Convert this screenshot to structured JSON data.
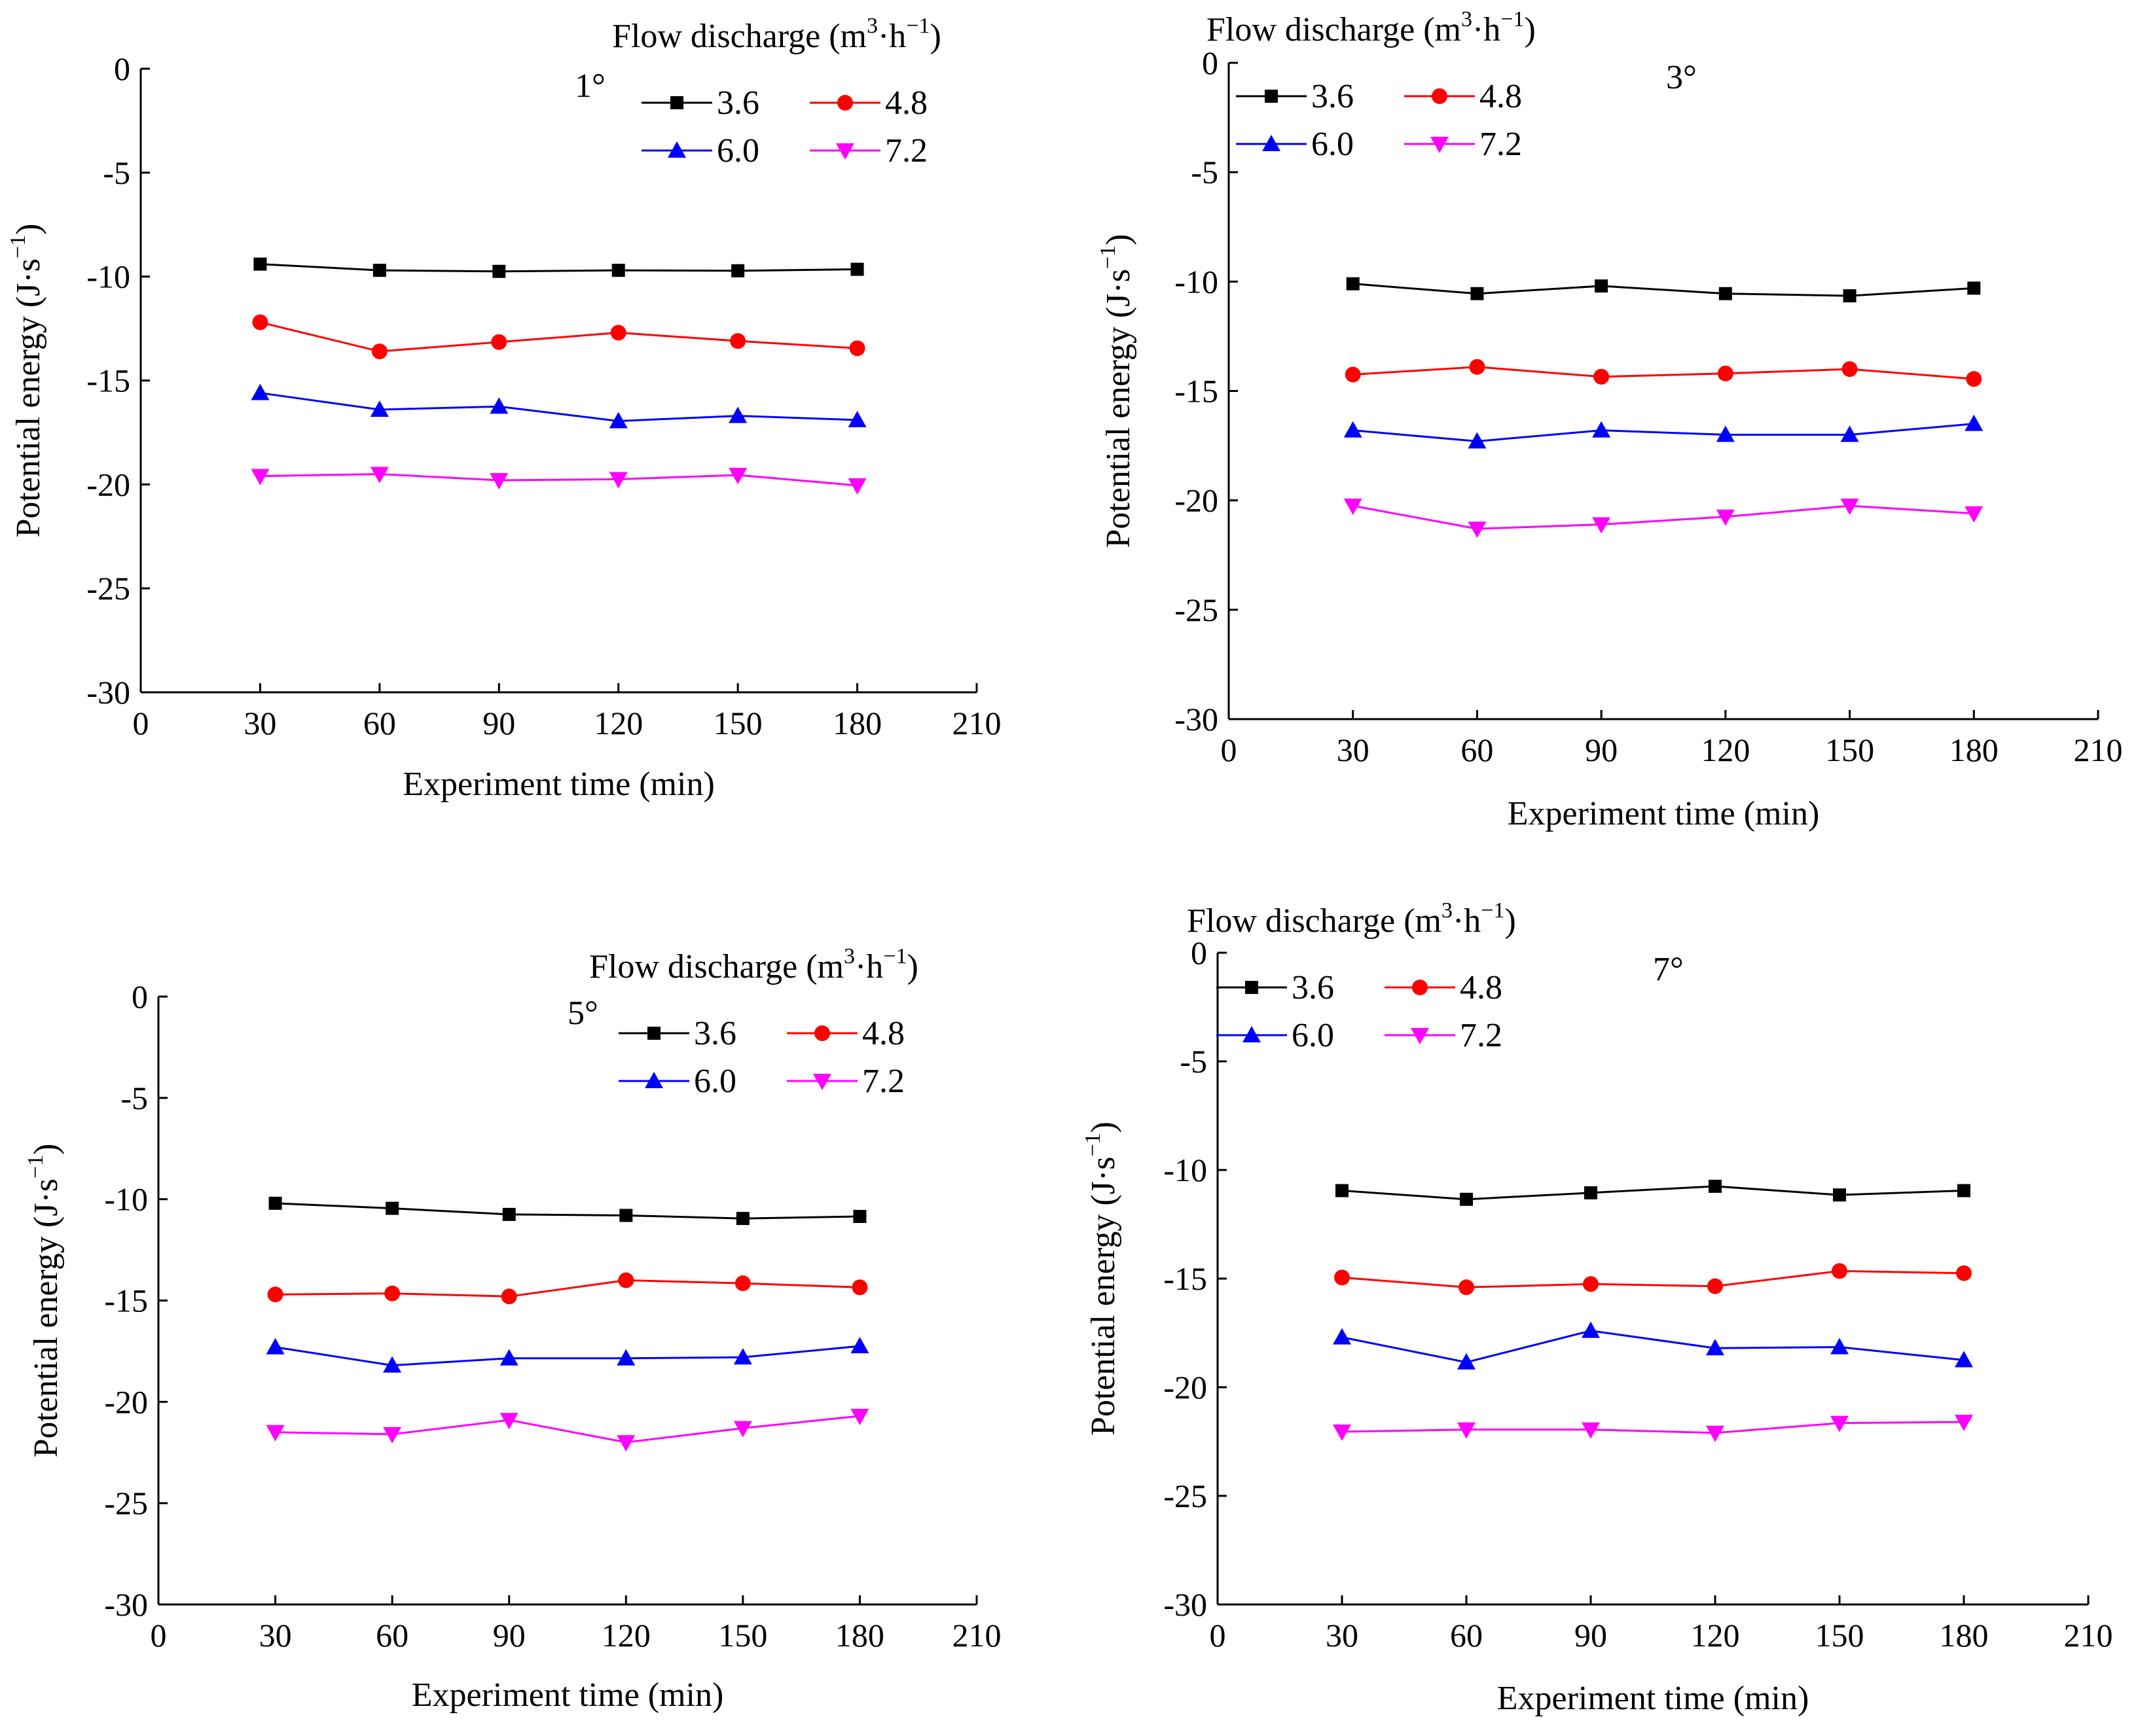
{
  "figure": {
    "legend_title": "Flow discharge (m",
    "legend_title_sup1": "3",
    "legend_title_mid": "·h",
    "legend_title_sup2": "−1",
    "legend_title_end": ")",
    "xlabel": "Experiment time (min)",
    "ylabel": "Potential energy (J·s",
    "ylabel_sup": "−1",
    "ylabel_end": ")"
  },
  "chart_data": [
    {
      "type": "line",
      "panel_label": "1°",
      "title": "",
      "xlabel": "Experiment time (min)",
      "ylabel": "Potential energy (J·s−1)",
      "legend_title": "Flow discharge (m3·h−1)",
      "xlim": [
        0,
        210
      ],
      "ylim": [
        -30,
        0
      ],
      "xticks": [
        0,
        30,
        60,
        90,
        120,
        150,
        180,
        210
      ],
      "yticks": [
        0,
        -5,
        -10,
        -15,
        -20,
        -25,
        -30
      ],
      "grid": false,
      "legend_position": "top-right",
      "x": [
        30,
        60,
        90,
        120,
        150,
        180
      ],
      "series": [
        {
          "name": "3.6",
          "color": "#000000",
          "marker": "square",
          "values": [
            -9.4,
            -9.7,
            -9.75,
            -9.7,
            -9.72,
            -9.65
          ]
        },
        {
          "name": "4.8",
          "color": "#ff0000",
          "marker": "circle",
          "values": [
            -12.2,
            -13.6,
            -13.15,
            -12.7,
            -13.1,
            -13.45
          ]
        },
        {
          "name": "6.0",
          "color": "#0000ff",
          "marker": "triangle-up",
          "values": [
            -15.6,
            -16.4,
            -16.25,
            -16.95,
            -16.7,
            -16.9
          ]
        },
        {
          "name": "7.2",
          "color": "#ff00ff",
          "marker": "triangle-down",
          "values": [
            -19.6,
            -19.5,
            -19.8,
            -19.75,
            -19.55,
            -20.05
          ]
        }
      ]
    },
    {
      "type": "line",
      "panel_label": "3°",
      "title": "",
      "xlabel": "Experiment time (min)",
      "ylabel": "Potential energy (J·s−1)",
      "legend_title": "Flow discharge (m3·h−1)",
      "xlim": [
        0,
        210
      ],
      "ylim": [
        -30,
        0
      ],
      "xticks": [
        0,
        30,
        60,
        90,
        120,
        150,
        180,
        210
      ],
      "yticks": [
        0,
        -5,
        -10,
        -15,
        -20,
        -25,
        -30
      ],
      "grid": false,
      "legend_position": "top-right",
      "x": [
        30,
        60,
        90,
        120,
        150,
        180
      ],
      "series": [
        {
          "name": "3.6",
          "color": "#000000",
          "marker": "square",
          "values": [
            -10.1,
            -10.55,
            -10.2,
            -10.55,
            -10.65,
            -10.3
          ]
        },
        {
          "name": "4.8",
          "color": "#ff0000",
          "marker": "circle",
          "values": [
            -14.25,
            -13.9,
            -14.35,
            -14.2,
            -14.0,
            -14.45
          ]
        },
        {
          "name": "6.0",
          "color": "#0000ff",
          "marker": "triangle-up",
          "values": [
            -16.8,
            -17.3,
            -16.8,
            -17.0,
            -17.0,
            -16.5
          ]
        },
        {
          "name": "7.2",
          "color": "#ff00ff",
          "marker": "triangle-down",
          "values": [
            -20.25,
            -21.3,
            -21.1,
            -20.75,
            -20.25,
            -20.6
          ]
        }
      ]
    },
    {
      "type": "line",
      "panel_label": "5°",
      "title": "",
      "xlabel": "Experiment time (min)",
      "ylabel": "Potential energy (J·s−1)",
      "legend_title": "Flow discharge (m3·h−1)",
      "xlim": [
        0,
        210
      ],
      "ylim": [
        -30,
        0
      ],
      "xticks": [
        0,
        30,
        60,
        90,
        120,
        150,
        180,
        210
      ],
      "yticks": [
        0,
        -5,
        -10,
        -15,
        -20,
        -25,
        -30
      ],
      "grid": false,
      "legend_position": "top-right",
      "x": [
        30,
        60,
        90,
        120,
        150,
        180
      ],
      "series": [
        {
          "name": "3.6",
          "color": "#000000",
          "marker": "square",
          "values": [
            -10.2,
            -10.45,
            -10.75,
            -10.8,
            -10.95,
            -10.85
          ]
        },
        {
          "name": "4.8",
          "color": "#ff0000",
          "marker": "circle",
          "values": [
            -14.7,
            -14.65,
            -14.8,
            -14.0,
            -14.15,
            -14.35
          ]
        },
        {
          "name": "6.0",
          "color": "#0000ff",
          "marker": "triangle-up",
          "values": [
            -17.3,
            -18.2,
            -17.85,
            -17.85,
            -17.8,
            -17.25
          ]
        },
        {
          "name": "7.2",
          "color": "#ff00ff",
          "marker": "triangle-down",
          "values": [
            -21.5,
            -21.6,
            -20.9,
            -22.0,
            -21.3,
            -20.7
          ]
        }
      ]
    },
    {
      "type": "line",
      "panel_label": "7°",
      "title": "",
      "xlabel": "Experiment time (min)",
      "ylabel": "Potential energy (J·s−1)",
      "legend_title": "Flow discharge (m3·h−1)",
      "xlim": [
        0,
        210
      ],
      "ylim": [
        -30,
        0
      ],
      "xticks": [
        0,
        30,
        60,
        90,
        120,
        150,
        180,
        210
      ],
      "yticks": [
        0,
        -5,
        -10,
        -15,
        -20,
        -25,
        -30
      ],
      "grid": false,
      "legend_position": "top-right",
      "x": [
        30,
        60,
        90,
        120,
        150,
        180
      ],
      "series": [
        {
          "name": "3.6",
          "color": "#000000",
          "marker": "square",
          "values": [
            -10.95,
            -11.35,
            -11.05,
            -10.75,
            -11.15,
            -10.95
          ]
        },
        {
          "name": "4.8",
          "color": "#ff0000",
          "marker": "circle",
          "values": [
            -14.95,
            -15.4,
            -15.25,
            -15.35,
            -14.65,
            -14.75
          ]
        },
        {
          "name": "6.0",
          "color": "#0000ff",
          "marker": "triangle-up",
          "values": [
            -17.7,
            -18.85,
            -17.4,
            -18.2,
            -18.15,
            -18.75
          ]
        },
        {
          "name": "7.2",
          "color": "#ff00ff",
          "marker": "triangle-down",
          "values": [
            -22.05,
            -21.95,
            -21.95,
            -22.1,
            -21.65,
            -21.6
          ]
        }
      ]
    }
  ]
}
